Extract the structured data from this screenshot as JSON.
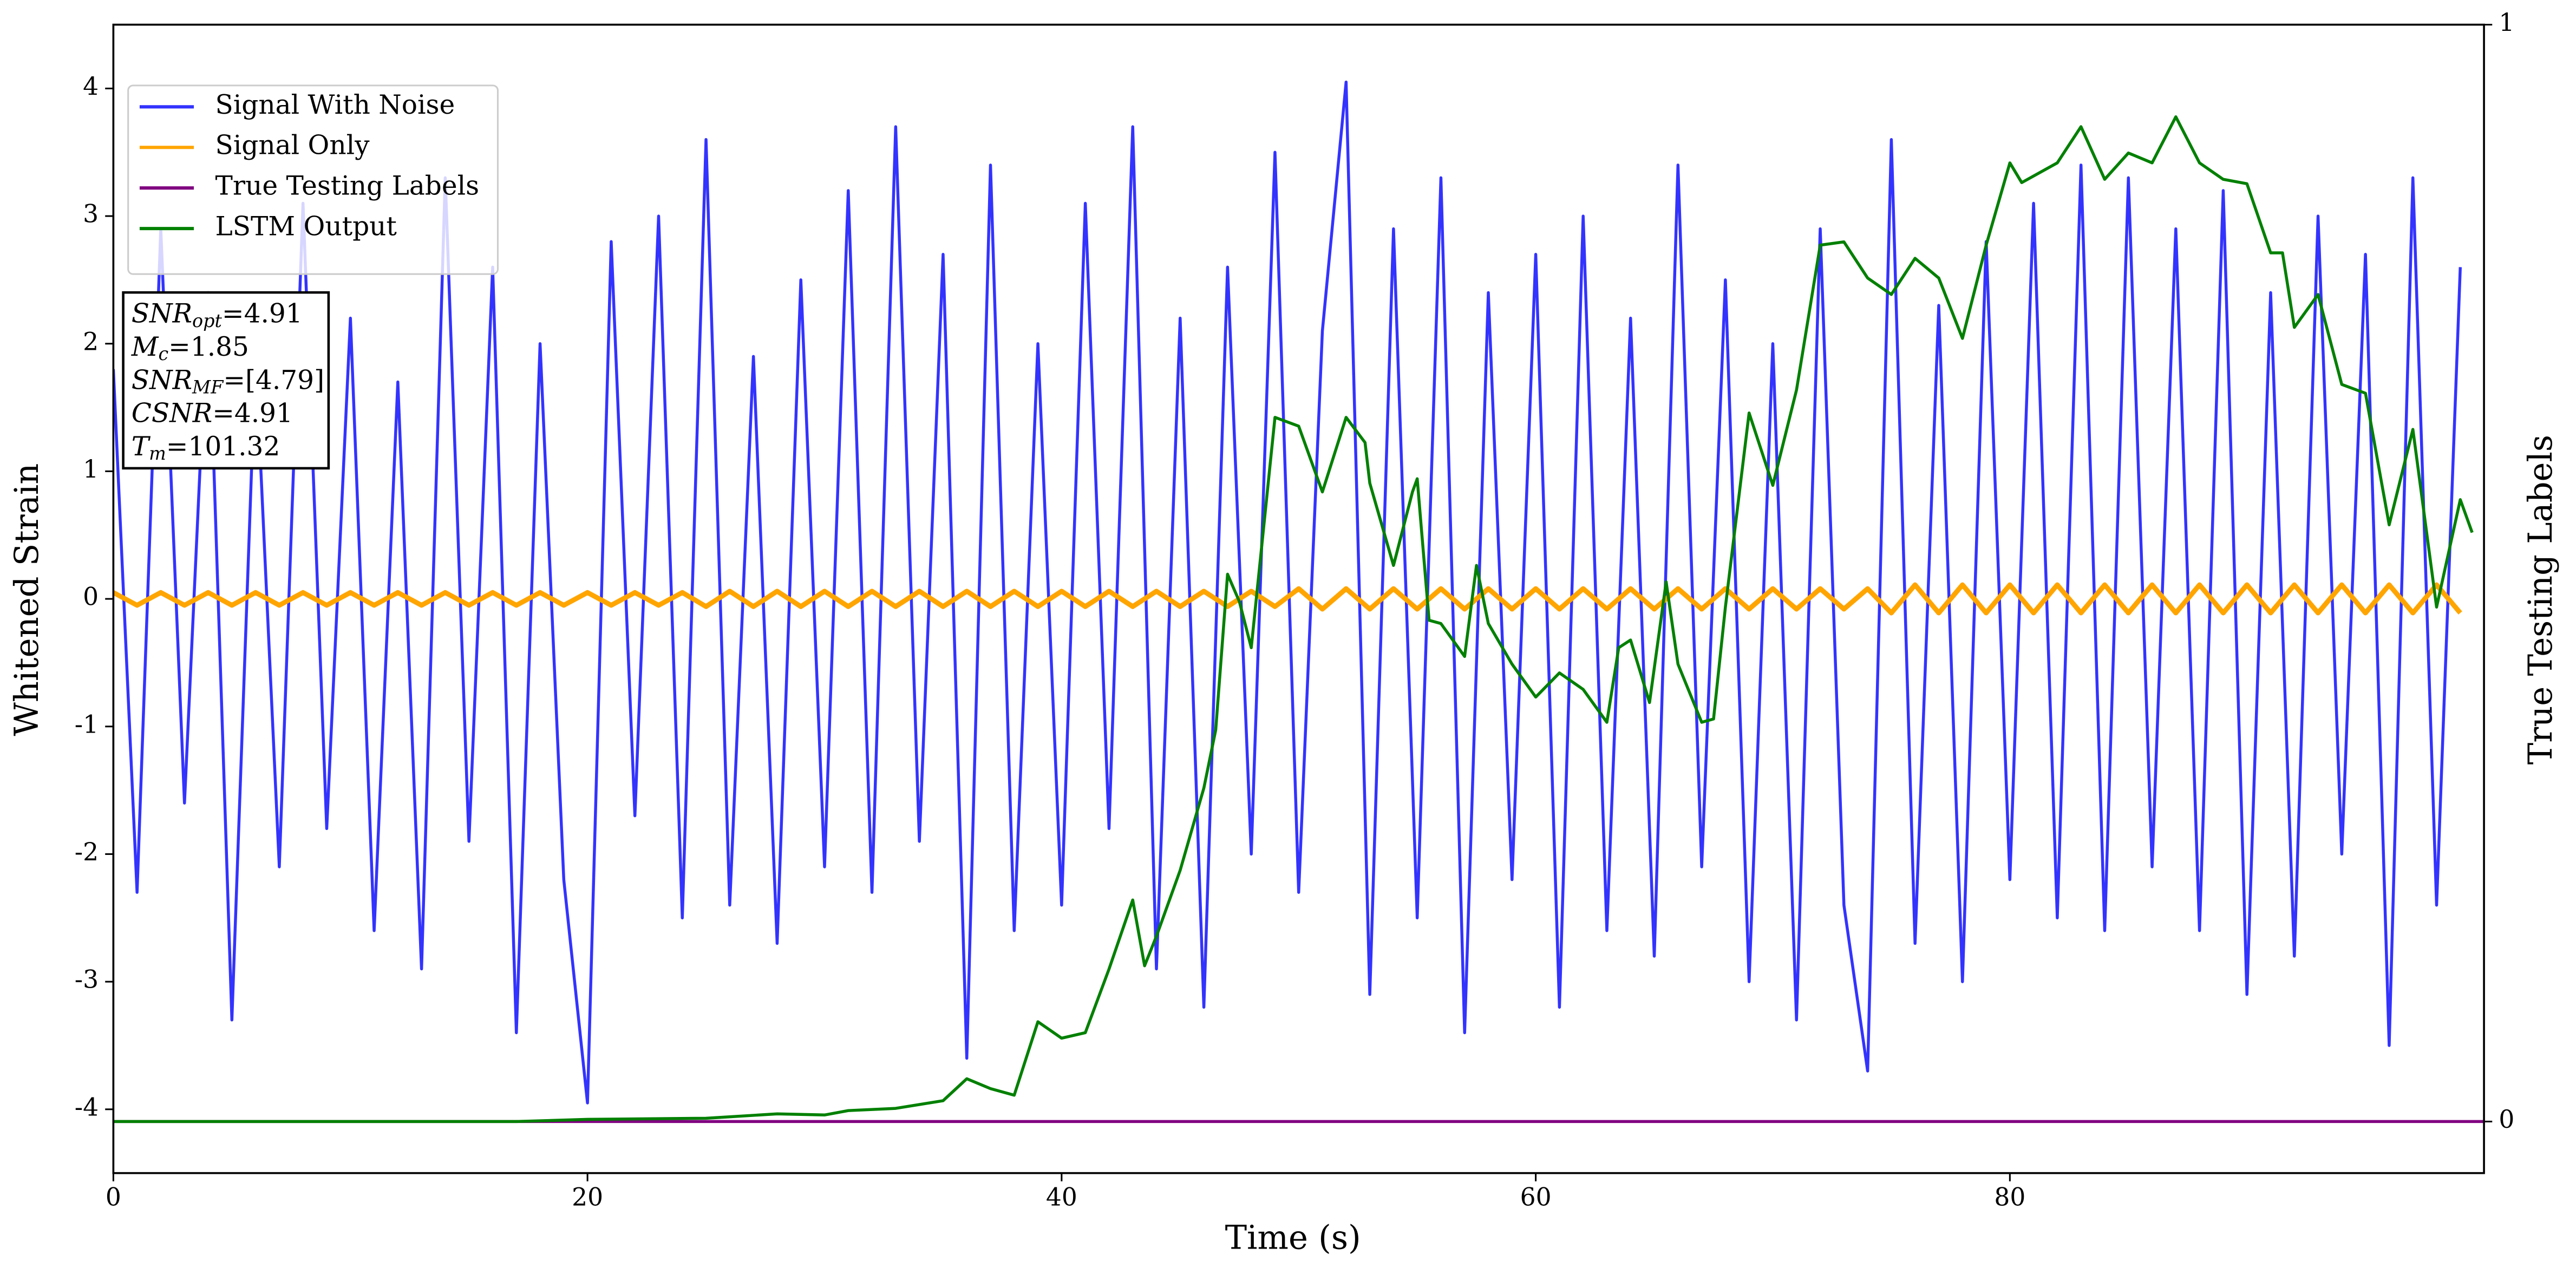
{
  "chart_data": {
    "type": "line",
    "xlabel": "Time (s)",
    "ylabel": "Whitened Strain",
    "y2label": "True Testing Labels",
    "xlim": [
      0,
      100
    ],
    "ylim": [
      -4.5,
      4.5
    ],
    "y2lim": [
      -0.047,
      1.0
    ],
    "xticks": [
      0,
      20,
      40,
      60,
      80
    ],
    "yticks": [
      -4,
      -3,
      -2,
      -1,
      0,
      1,
      2,
      3,
      4
    ],
    "y2ticks": [
      0,
      1
    ],
    "legend": "upper left",
    "annotation": [
      {
        "base": "SNR",
        "sub": "opt",
        "rest": "=4.91"
      },
      {
        "base": "M",
        "sub": "c",
        "rest": "=1.85"
      },
      {
        "base": "SNR",
        "sub": "MF",
        "rest": "=[4.79]"
      },
      {
        "base": "CSNR",
        "rest": "=4.91"
      },
      {
        "base": "T",
        "sub": "m",
        "rest": "=101.32"
      }
    ],
    "series": [
      {
        "name": "Signal With Noise",
        "color": "#3333ff",
        "x": [
          0,
          1,
          2,
          3,
          4,
          5,
          6,
          7,
          8,
          9,
          10,
          11,
          12,
          13,
          14,
          15,
          16,
          17,
          18,
          19,
          20,
          21,
          22,
          23,
          24,
          25,
          26,
          27,
          28,
          29,
          30,
          31,
          32,
          33,
          34,
          35,
          36,
          37,
          38,
          39,
          40,
          41,
          42,
          43,
          44,
          45,
          46,
          47,
          48,
          49,
          50,
          51,
          52,
          53,
          54,
          55,
          56,
          57,
          58,
          59,
          60,
          61,
          62,
          63,
          64,
          65,
          66,
          67,
          68,
          69,
          70,
          71,
          72,
          73,
          74,
          75,
          76,
          77,
          78,
          79,
          80,
          81,
          82,
          83,
          84,
          85,
          86,
          87,
          88,
          89,
          90,
          91,
          92,
          93,
          94,
          95,
          96,
          97,
          98,
          99
        ],
        "values": [
          1.8,
          -2.3,
          2.9,
          -1.6,
          2.4,
          -3.3,
          1.9,
          -2.1,
          3.1,
          -1.8,
          2.2,
          -2.6,
          1.7,
          -2.9,
          3.3,
          -1.9,
          2.6,
          -3.4,
          2.0,
          -2.2,
          -3.95,
          2.8,
          -1.7,
          3.0,
          -2.5,
          3.6,
          -2.4,
          1.9,
          -2.7,
          2.5,
          -2.1,
          3.2,
          -2.3,
          3.7,
          -1.9,
          2.7,
          -3.6,
          3.4,
          -2.6,
          2.0,
          -2.4,
          3.1,
          -1.8,
          3.7,
          -2.9,
          2.2,
          -3.2,
          2.6,
          -2.0,
          3.5,
          -2.3,
          2.1,
          4.05,
          -3.1,
          2.9,
          -2.5,
          3.3,
          -3.4,
          2.4,
          -2.2,
          2.7,
          -3.2,
          3.0,
          -2.6,
          2.2,
          -2.8,
          3.4,
          -2.1,
          2.5,
          -3.0,
          2.0,
          -3.3,
          2.9,
          -2.4,
          -3.7,
          3.6,
          -2.7,
          2.3,
          -3.0,
          2.8,
          -2.2,
          3.1,
          -2.5,
          3.4,
          -2.6,
          3.3,
          -2.1,
          2.9,
          -2.6,
          3.2,
          -3.1,
          2.4,
          -2.8,
          3.0,
          -2.0,
          2.7,
          -3.5,
          3.3,
          -2.4,
          2.6
        ]
      },
      {
        "name": "Signal Only",
        "color": "#ffa500",
        "x": [
          0,
          1,
          2,
          3,
          4,
          5,
          6,
          7,
          8,
          9,
          10,
          11,
          12,
          13,
          14,
          15,
          16,
          17,
          18,
          19,
          20,
          21,
          22,
          23,
          24,
          25,
          26,
          27,
          28,
          29,
          30,
          31,
          32,
          33,
          34,
          35,
          36,
          37,
          38,
          39,
          40,
          41,
          42,
          43,
          44,
          45,
          46,
          47,
          48,
          49,
          50,
          51,
          52,
          53,
          54,
          55,
          56,
          57,
          58,
          59,
          60,
          61,
          62,
          63,
          64,
          65,
          66,
          67,
          68,
          69,
          70,
          71,
          72,
          73,
          74,
          75,
          76,
          77,
          78,
          79,
          80,
          81,
          82,
          83,
          84,
          85,
          86,
          87,
          88,
          89,
          90,
          91,
          92,
          93,
          94,
          95,
          96,
          97,
          98,
          99
        ],
        "values": [
          0.05,
          -0.05,
          0.05,
          -0.05,
          0.05,
          -0.05,
          0.05,
          -0.05,
          0.05,
          -0.05,
          0.05,
          -0.05,
          0.05,
          -0.05,
          0.05,
          -0.05,
          0.05,
          -0.05,
          0.05,
          -0.05,
          0.05,
          -0.05,
          0.05,
          -0.05,
          0.05,
          -0.06,
          0.06,
          -0.06,
          0.06,
          -0.06,
          0.06,
          -0.06,
          0.06,
          -0.06,
          0.06,
          -0.06,
          0.06,
          -0.06,
          0.06,
          -0.06,
          0.06,
          -0.06,
          0.06,
          -0.06,
          0.06,
          -0.06,
          0.06,
          -0.06,
          0.06,
          -0.06,
          0.08,
          -0.08,
          0.08,
          -0.08,
          0.08,
          -0.08,
          0.08,
          -0.08,
          0.08,
          -0.08,
          0.08,
          -0.08,
          0.08,
          -0.08,
          0.08,
          -0.08,
          0.08,
          -0.08,
          0.08,
          -0.08,
          0.08,
          -0.08,
          0.08,
          -0.08,
          0.08,
          -0.11,
          0.11,
          -0.11,
          0.11,
          -0.11,
          0.11,
          -0.11,
          0.11,
          -0.11,
          0.11,
          -0.11,
          0.11,
          -0.11,
          0.11,
          -0.11,
          0.11,
          -0.11,
          0.11,
          -0.11,
          0.11,
          -0.11,
          0.11,
          -0.11,
          0.11,
          -0.11
        ]
      },
      {
        "name": "True Testing Labels",
        "color": "#800080",
        "axis": "y2",
        "x": [
          0,
          100
        ],
        "values": [
          0,
          0
        ]
      },
      {
        "name": "LSTM Output",
        "color": "#008000",
        "axis": "y2",
        "x": [
          0,
          17,
          20,
          25,
          28,
          30,
          31,
          33,
          35,
          36,
          37,
          38,
          39,
          40,
          41,
          42,
          43,
          43.5,
          44,
          45,
          46,
          46.5,
          47,
          47.5,
          48,
          49,
          50,
          51,
          52,
          52.8,
          53,
          54,
          54.8,
          55,
          55.5,
          56,
          57,
          57.5,
          58,
          59,
          60,
          61,
          62,
          63,
          63.5,
          64,
          64.8,
          65.5,
          66,
          67,
          67.5,
          68,
          69,
          70,
          71,
          72,
          73,
          74,
          75,
          76,
          77,
          78,
          79,
          80,
          80.5,
          82,
          83,
          84,
          85,
          86,
          87,
          88,
          89,
          90,
          91,
          91.5,
          92,
          93,
          94,
          95,
          96,
          97,
          98,
          99,
          99.5
        ],
        "values": [
          0,
          0,
          0.002,
          0.003,
          0.007,
          0.006,
          0.01,
          0.012,
          0.019,
          0.039,
          0.03,
          0.024,
          0.091,
          0.076,
          0.081,
          0.139,
          0.202,
          0.142,
          0.169,
          0.229,
          0.304,
          0.357,
          0.499,
          0.474,
          0.432,
          0.642,
          0.634,
          0.574,
          0.642,
          0.619,
          0.582,
          0.507,
          0.574,
          0.586,
          0.457,
          0.454,
          0.424,
          0.507,
          0.454,
          0.417,
          0.387,
          0.409,
          0.394,
          0.364,
          0.432,
          0.439,
          0.382,
          0.492,
          0.417,
          0.364,
          0.367,
          0.469,
          0.646,
          0.58,
          0.667,
          0.799,
          0.802,
          0.769,
          0.754,
          0.787,
          0.769,
          0.714,
          0.799,
          0.874,
          0.856,
          0.874,
          0.907,
          0.859,
          0.883,
          0.874,
          0.916,
          0.874,
          0.859,
          0.855,
          0.792,
          0.792,
          0.724,
          0.754,
          0.672,
          0.664,
          0.544,
          0.631,
          0.469,
          0.567,
          0.537
        ]
      }
    ]
  }
}
